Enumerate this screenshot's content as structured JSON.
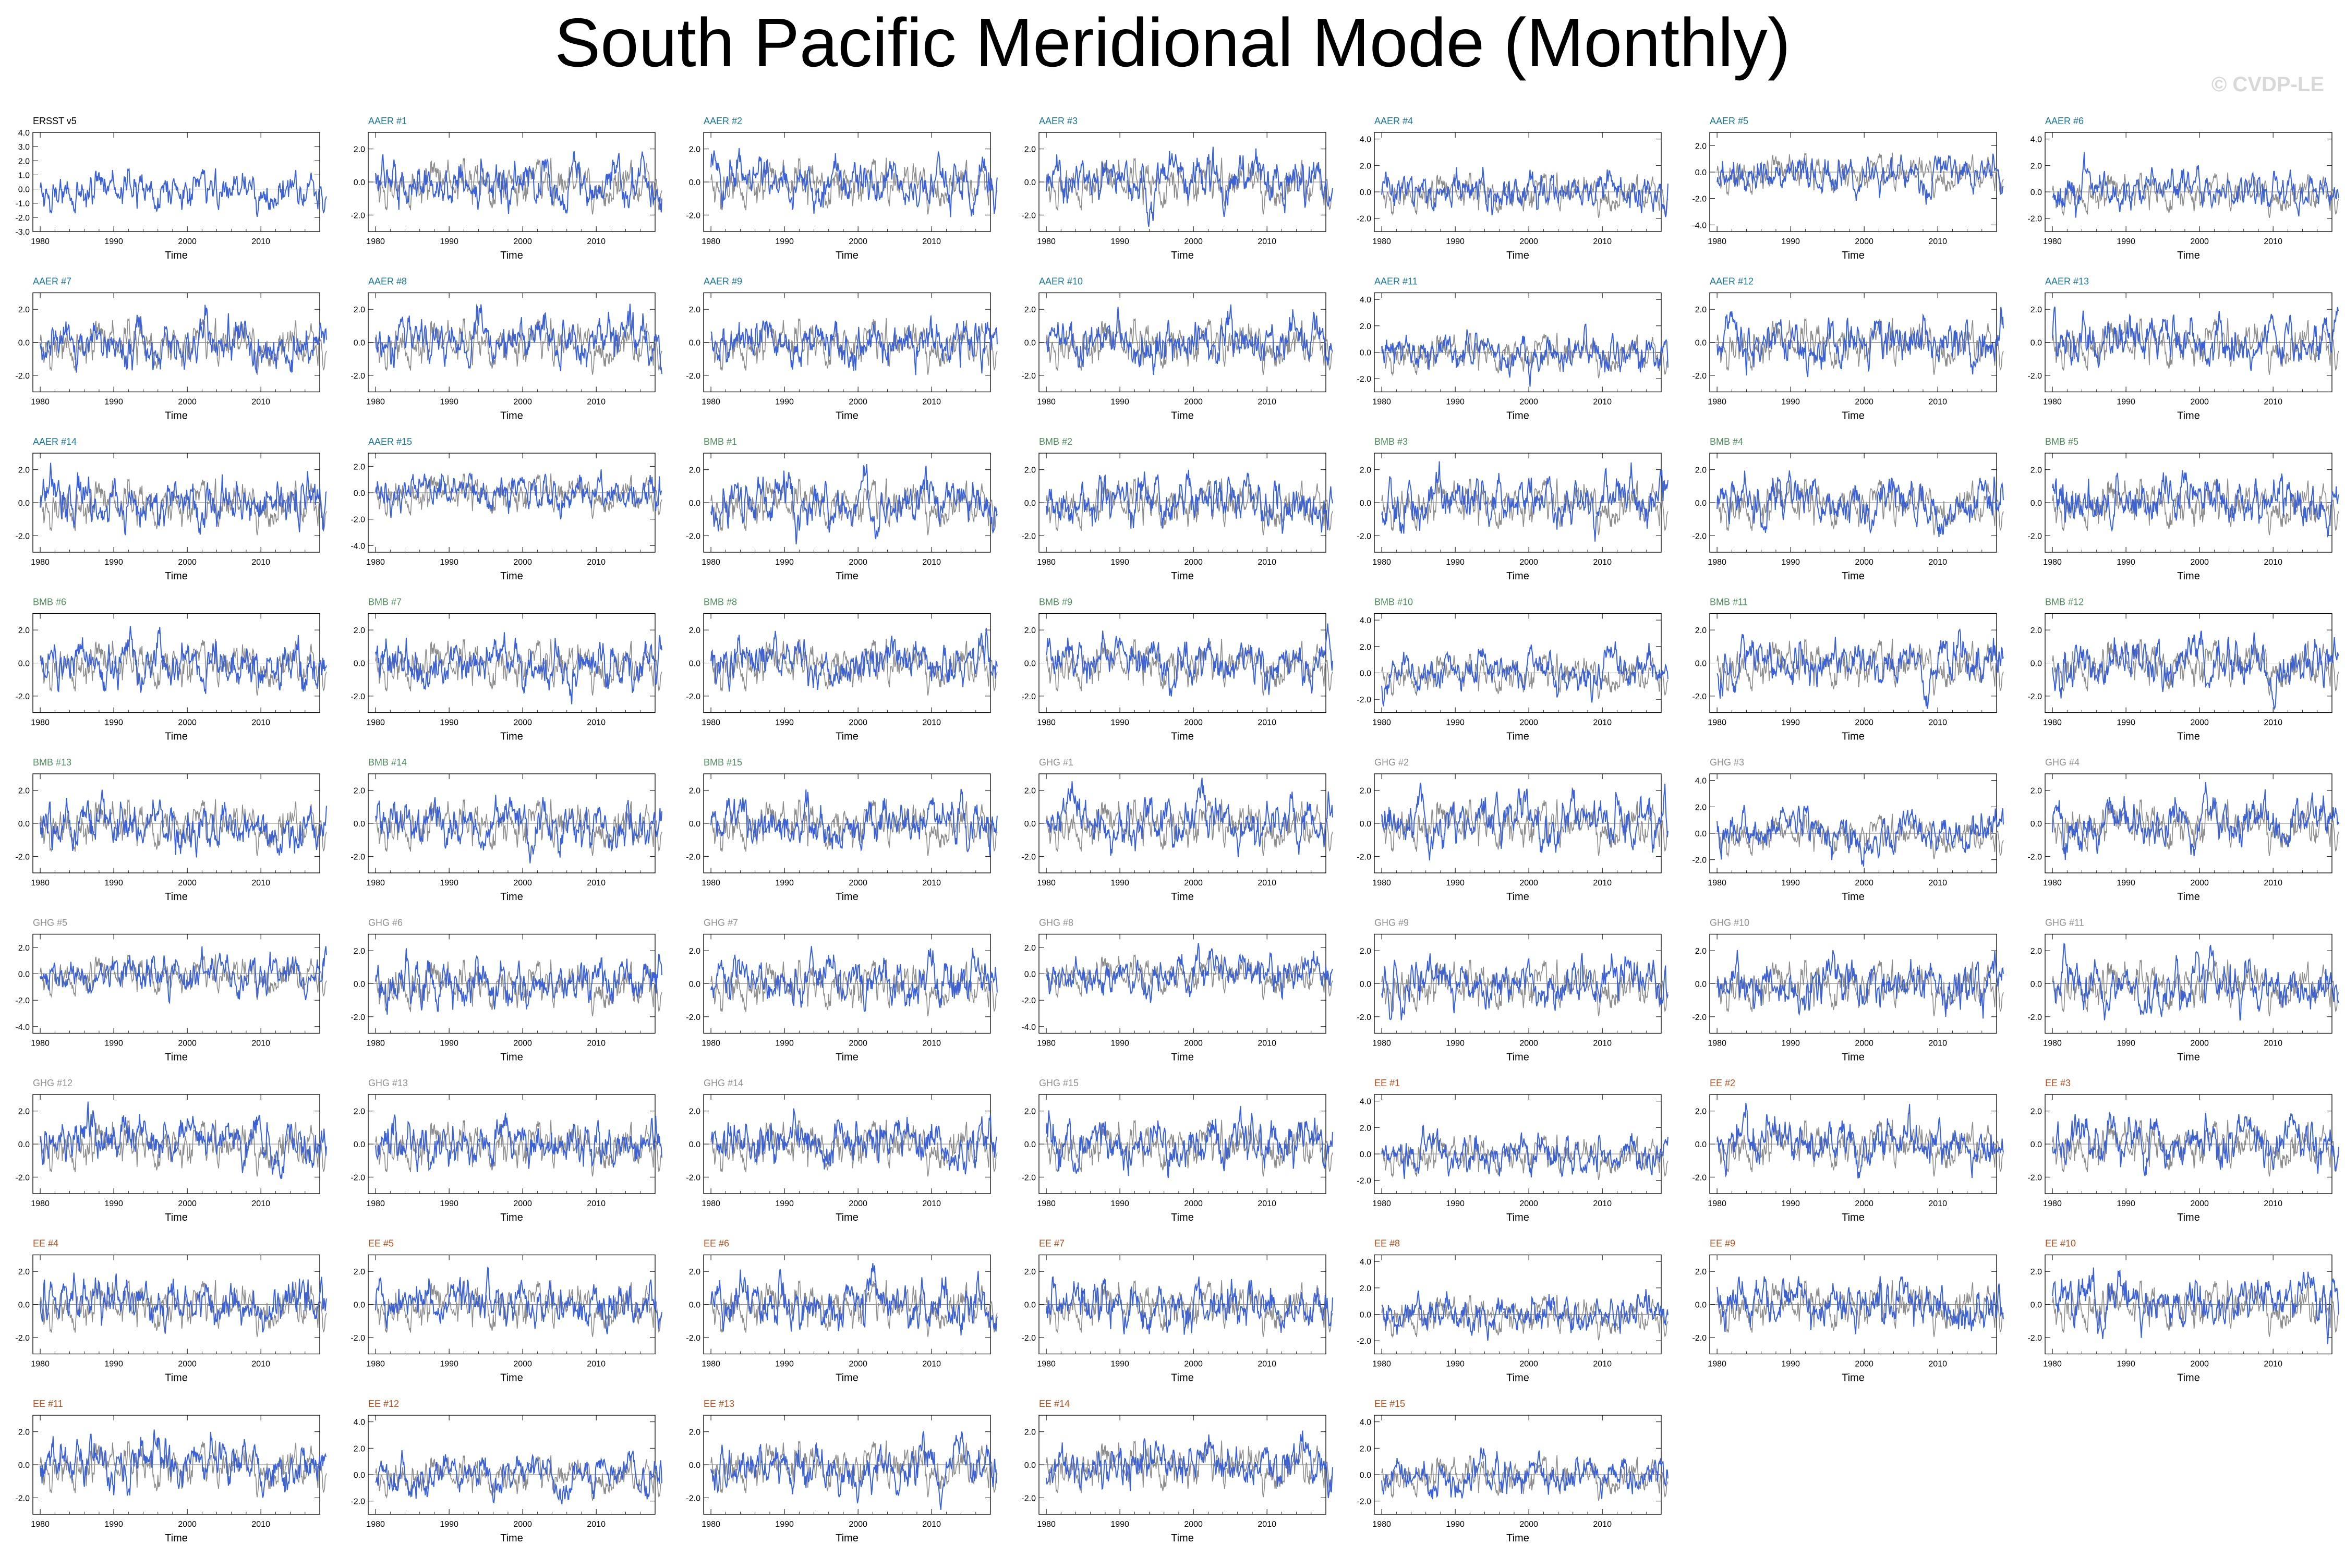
{
  "title": "South Pacific Meridional Mode (Monthly)",
  "watermark": "© CVDP-LE",
  "colors": {
    "model": "#3a62d6",
    "observation_overlay": "#8c8c8c",
    "ERSST": "#000000",
    "AAER": "#1a7a9a",
    "BMB": "#4f8f5f",
    "GHG": "#909090",
    "EE": "#b4501e"
  },
  "chart_data": {
    "type": "line",
    "x_label": "Time",
    "x_ticks": [
      "1980",
      "1990",
      "2000",
      "2010"
    ],
    "xlim": [
      1979,
      2018
    ],
    "y_tick_format": "one decimal",
    "panels": [
      {
        "label": "ERSST v5",
        "group": "ERSST",
        "ylim": [
          -3.0,
          4.0
        ],
        "yticks": [
          "4.0",
          "3.0",
          "2.0",
          "1.0",
          "0.0",
          "-1.0",
          "-2.0",
          "-3.0"
        ],
        "seed": 11
      },
      {
        "label": "AAER #1",
        "group": "AAER",
        "ylim": [
          -3.0,
          3.0
        ],
        "yticks": [
          "2.0",
          "0.0",
          "-2.0"
        ],
        "seed": 21
      },
      {
        "label": "AAER #2",
        "group": "AAER",
        "ylim": [
          -3.0,
          3.0
        ],
        "yticks": [
          "2.0",
          "0.0",
          "-2.0"
        ],
        "seed": 22
      },
      {
        "label": "AAER #3",
        "group": "AAER",
        "ylim": [
          -3.0,
          3.0
        ],
        "yticks": [
          "2.0",
          "0.0",
          "-2.0"
        ],
        "seed": 23
      },
      {
        "label": "AAER #4",
        "group": "AAER",
        "ylim": [
          -3.0,
          4.5
        ],
        "yticks": [
          "4.0",
          "2.0",
          "0.0",
          "-2.0"
        ],
        "seed": 24
      },
      {
        "label": "AAER #5",
        "group": "AAER",
        "ylim": [
          -4.5,
          3.0
        ],
        "yticks": [
          "2.0",
          "0.0",
          "-2.0",
          "-4.0"
        ],
        "seed": 25
      },
      {
        "label": "AAER #6",
        "group": "AAER",
        "ylim": [
          -3.0,
          4.5
        ],
        "yticks": [
          "4.0",
          "2.0",
          "0.0",
          "-2.0"
        ],
        "seed": 26
      },
      {
        "label": "AAER #7",
        "group": "AAER",
        "ylim": [
          -3.0,
          3.0
        ],
        "yticks": [
          "2.0",
          "0.0",
          "-2.0"
        ],
        "seed": 27
      },
      {
        "label": "AAER #8",
        "group": "AAER",
        "ylim": [
          -3.0,
          3.0
        ],
        "yticks": [
          "2.0",
          "0.0",
          "-2.0"
        ],
        "seed": 28
      },
      {
        "label": "AAER #9",
        "group": "AAER",
        "ylim": [
          -3.0,
          3.0
        ],
        "yticks": [
          "2.0",
          "0.0",
          "-2.0"
        ],
        "seed": 29
      },
      {
        "label": "AAER #10",
        "group": "AAER",
        "ylim": [
          -3.0,
          3.0
        ],
        "yticks": [
          "2.0",
          "0.0",
          "-2.0"
        ],
        "seed": 30
      },
      {
        "label": "AAER #11",
        "group": "AAER",
        "ylim": [
          -3.0,
          4.5
        ],
        "yticks": [
          "4.0",
          "2.0",
          "0.0",
          "-2.0"
        ],
        "seed": 31
      },
      {
        "label": "AAER #12",
        "group": "AAER",
        "ylim": [
          -3.0,
          3.0
        ],
        "yticks": [
          "2.0",
          "0.0",
          "-2.0"
        ],
        "seed": 32
      },
      {
        "label": "AAER #13",
        "group": "AAER",
        "ylim": [
          -3.0,
          3.0
        ],
        "yticks": [
          "2.0",
          "0.0",
          "-2.0"
        ],
        "seed": 33
      },
      {
        "label": "AAER #14",
        "group": "AAER",
        "ylim": [
          -3.0,
          3.0
        ],
        "yticks": [
          "2.0",
          "0.0",
          "-2.0"
        ],
        "seed": 34
      },
      {
        "label": "AAER #15",
        "group": "AAER",
        "ylim": [
          -4.5,
          3.0
        ],
        "yticks": [
          "2.0",
          "0.0",
          "-2.0",
          "-4.0"
        ],
        "seed": 35
      },
      {
        "label": "BMB #1",
        "group": "BMB",
        "ylim": [
          -3.0,
          3.0
        ],
        "yticks": [
          "2.0",
          "0.0",
          "-2.0"
        ],
        "seed": 41
      },
      {
        "label": "BMB #2",
        "group": "BMB",
        "ylim": [
          -3.0,
          3.0
        ],
        "yticks": [
          "2.0",
          "0.0",
          "-2.0"
        ],
        "seed": 42
      },
      {
        "label": "BMB #3",
        "group": "BMB",
        "ylim": [
          -3.0,
          3.0
        ],
        "yticks": [
          "2.0",
          "0.0",
          "-2.0"
        ],
        "seed": 43
      },
      {
        "label": "BMB #4",
        "group": "BMB",
        "ylim": [
          -3.0,
          3.0
        ],
        "yticks": [
          "2.0",
          "0.0",
          "-2.0"
        ],
        "seed": 44
      },
      {
        "label": "BMB #5",
        "group": "BMB",
        "ylim": [
          -3.0,
          3.0
        ],
        "yticks": [
          "2.0",
          "0.0",
          "-2.0"
        ],
        "seed": 45
      },
      {
        "label": "BMB #6",
        "group": "BMB",
        "ylim": [
          -3.0,
          3.0
        ],
        "yticks": [
          "2.0",
          "0.0",
          "-2.0"
        ],
        "seed": 46
      },
      {
        "label": "BMB #7",
        "group": "BMB",
        "ylim": [
          -3.0,
          3.0
        ],
        "yticks": [
          "2.0",
          "0.0",
          "-2.0"
        ],
        "seed": 47
      },
      {
        "label": "BMB #8",
        "group": "BMB",
        "ylim": [
          -3.0,
          3.0
        ],
        "yticks": [
          "2.0",
          "0.0",
          "-2.0"
        ],
        "seed": 48
      },
      {
        "label": "BMB #9",
        "group": "BMB",
        "ylim": [
          -3.0,
          3.0
        ],
        "yticks": [
          "2.0",
          "0.0",
          "-2.0"
        ],
        "seed": 49
      },
      {
        "label": "BMB #10",
        "group": "BMB",
        "ylim": [
          -3.0,
          4.5
        ],
        "yticks": [
          "4.0",
          "2.0",
          "0.0",
          "-2.0"
        ],
        "seed": 50
      },
      {
        "label": "BMB #11",
        "group": "BMB",
        "ylim": [
          -3.0,
          3.0
        ],
        "yticks": [
          "2.0",
          "0.0",
          "-2.0"
        ],
        "seed": 51
      },
      {
        "label": "BMB #12",
        "group": "BMB",
        "ylim": [
          -3.0,
          3.0
        ],
        "yticks": [
          "2.0",
          "0.0",
          "-2.0"
        ],
        "seed": 52
      },
      {
        "label": "BMB #13",
        "group": "BMB",
        "ylim": [
          -3.0,
          3.0
        ],
        "yticks": [
          "2.0",
          "0.0",
          "-2.0"
        ],
        "seed": 53
      },
      {
        "label": "BMB #14",
        "group": "BMB",
        "ylim": [
          -3.0,
          3.0
        ],
        "yticks": [
          "2.0",
          "0.0",
          "-2.0"
        ],
        "seed": 54
      },
      {
        "label": "BMB #15",
        "group": "BMB",
        "ylim": [
          -3.0,
          3.0
        ],
        "yticks": [
          "2.0",
          "0.0",
          "-2.0"
        ],
        "seed": 55
      },
      {
        "label": "GHG #1",
        "group": "GHG",
        "ylim": [
          -3.0,
          3.0
        ],
        "yticks": [
          "2.0",
          "0.0",
          "-2.0"
        ],
        "seed": 61
      },
      {
        "label": "GHG #2",
        "group": "GHG",
        "ylim": [
          -3.0,
          3.0
        ],
        "yticks": [
          "2.0",
          "0.0",
          "-2.0"
        ],
        "seed": 62
      },
      {
        "label": "GHG #3",
        "group": "GHG",
        "ylim": [
          -3.0,
          4.5
        ],
        "yticks": [
          "4.0",
          "2.0",
          "0.0",
          "-2.0"
        ],
        "seed": 63
      },
      {
        "label": "GHG #4",
        "group": "GHG",
        "ylim": [
          -3.0,
          3.0
        ],
        "yticks": [
          "2.0",
          "0.0",
          "-2.0"
        ],
        "seed": 64
      },
      {
        "label": "GHG #5",
        "group": "GHG",
        "ylim": [
          -4.5,
          3.0
        ],
        "yticks": [
          "2.0",
          "0.0",
          "-2.0",
          "-4.0"
        ],
        "seed": 65
      },
      {
        "label": "GHG #6",
        "group": "GHG",
        "ylim": [
          -3.0,
          3.0
        ],
        "yticks": [
          "2.0",
          "0.0",
          "-2.0"
        ],
        "seed": 66
      },
      {
        "label": "GHG #7",
        "group": "GHG",
        "ylim": [
          -3.0,
          3.0
        ],
        "yticks": [
          "2.0",
          "0.0",
          "-2.0"
        ],
        "seed": 67
      },
      {
        "label": "GHG #8",
        "group": "GHG",
        "ylim": [
          -4.5,
          3.0
        ],
        "yticks": [
          "2.0",
          "0.0",
          "-2.0",
          "-4.0"
        ],
        "seed": 68
      },
      {
        "label": "GHG #9",
        "group": "GHG",
        "ylim": [
          -3.0,
          3.0
        ],
        "yticks": [
          "2.0",
          "0.0",
          "-2.0"
        ],
        "seed": 69
      },
      {
        "label": "GHG #10",
        "group": "GHG",
        "ylim": [
          -3.0,
          3.0
        ],
        "yticks": [
          "2.0",
          "0.0",
          "-2.0"
        ],
        "seed": 70
      },
      {
        "label": "GHG #11",
        "group": "GHG",
        "ylim": [
          -3.0,
          3.0
        ],
        "yticks": [
          "2.0",
          "0.0",
          "-2.0"
        ],
        "seed": 71
      },
      {
        "label": "GHG #12",
        "group": "GHG",
        "ylim": [
          -3.0,
          3.0
        ],
        "yticks": [
          "2.0",
          "0.0",
          "-2.0"
        ],
        "seed": 72
      },
      {
        "label": "GHG #13",
        "group": "GHG",
        "ylim": [
          -3.0,
          3.0
        ],
        "yticks": [
          "2.0",
          "0.0",
          "-2.0"
        ],
        "seed": 73
      },
      {
        "label": "GHG #14",
        "group": "GHG",
        "ylim": [
          -3.0,
          3.0
        ],
        "yticks": [
          "2.0",
          "0.0",
          "-2.0"
        ],
        "seed": 74
      },
      {
        "label": "GHG #15",
        "group": "GHG",
        "ylim": [
          -3.0,
          3.0
        ],
        "yticks": [
          "2.0",
          "0.0",
          "-2.0"
        ],
        "seed": 75
      },
      {
        "label": "EE #1",
        "group": "EE",
        "ylim": [
          -3.0,
          4.5
        ],
        "yticks": [
          "4.0",
          "2.0",
          "0.0",
          "-2.0"
        ],
        "seed": 81
      },
      {
        "label": "EE #2",
        "group": "EE",
        "ylim": [
          -3.0,
          3.0
        ],
        "yticks": [
          "2.0",
          "0.0",
          "-2.0"
        ],
        "seed": 82
      },
      {
        "label": "EE #3",
        "group": "EE",
        "ylim": [
          -3.0,
          3.0
        ],
        "yticks": [
          "2.0",
          "0.0",
          "-2.0"
        ],
        "seed": 83
      },
      {
        "label": "EE #4",
        "group": "EE",
        "ylim": [
          -3.0,
          3.0
        ],
        "yticks": [
          "2.0",
          "0.0",
          "-2.0"
        ],
        "seed": 84
      },
      {
        "label": "EE #5",
        "group": "EE",
        "ylim": [
          -3.0,
          3.0
        ],
        "yticks": [
          "2.0",
          "0.0",
          "-2.0"
        ],
        "seed": 85
      },
      {
        "label": "EE #6",
        "group": "EE",
        "ylim": [
          -3.0,
          3.0
        ],
        "yticks": [
          "2.0",
          "0.0",
          "-2.0"
        ],
        "seed": 86
      },
      {
        "label": "EE #7",
        "group": "EE",
        "ylim": [
          -3.0,
          3.0
        ],
        "yticks": [
          "2.0",
          "0.0",
          "-2.0"
        ],
        "seed": 87
      },
      {
        "label": "EE #8",
        "group": "EE",
        "ylim": [
          -3.0,
          4.5
        ],
        "yticks": [
          "4.0",
          "2.0",
          "0.0",
          "-2.0"
        ],
        "seed": 88
      },
      {
        "label": "EE #9",
        "group": "EE",
        "ylim": [
          -3.0,
          3.0
        ],
        "yticks": [
          "2.0",
          "0.0",
          "-2.0"
        ],
        "seed": 89
      },
      {
        "label": "EE #10",
        "group": "EE",
        "ylim": [
          -3.0,
          3.0
        ],
        "yticks": [
          "2.0",
          "0.0",
          "-2.0"
        ],
        "seed": 90
      },
      {
        "label": "EE #11",
        "group": "EE",
        "ylim": [
          -3.0,
          3.0
        ],
        "yticks": [
          "2.0",
          "0.0",
          "-2.0"
        ],
        "seed": 91
      },
      {
        "label": "EE #12",
        "group": "EE",
        "ylim": [
          -3.0,
          4.5
        ],
        "yticks": [
          "4.0",
          "2.0",
          "0.0",
          "-2.0"
        ],
        "seed": 92
      },
      {
        "label": "EE #13",
        "group": "EE",
        "ylim": [
          -3.0,
          3.0
        ],
        "yticks": [
          "2.0",
          "0.0",
          "-2.0"
        ],
        "seed": 93
      },
      {
        "label": "EE #14",
        "group": "EE",
        "ylim": [
          -3.0,
          3.0
        ],
        "yticks": [
          "2.0",
          "0.0",
          "-2.0"
        ],
        "seed": 94
      },
      {
        "label": "EE #15",
        "group": "EE",
        "ylim": [
          -3.0,
          4.5
        ],
        "yticks": [
          "4.0",
          "2.0",
          "0.0",
          "-2.0"
        ],
        "seed": 95
      }
    ]
  }
}
